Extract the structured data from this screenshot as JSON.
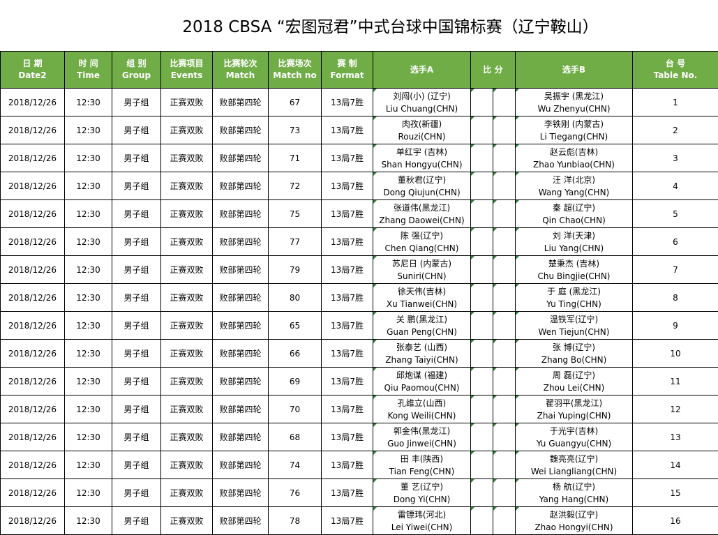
{
  "title": "2018 CBSA “宏图冠君”中式台球中国锦标赛（辽宁鞍山）",
  "colors": {
    "header_bg": "#70ad47",
    "header_text": "#ffffff"
  },
  "headers": {
    "date": {
      "cn": "日  期",
      "en": "Date2"
    },
    "time": {
      "cn": "时  间",
      "en": "Time"
    },
    "group": {
      "cn": "组  别",
      "en": "Group"
    },
    "event": {
      "cn": "比赛项目",
      "en": "Events"
    },
    "match": {
      "cn": "比赛轮次",
      "en": "Match"
    },
    "matchno": {
      "cn": "比赛场次",
      "en": "Match no"
    },
    "format": {
      "cn": "赛  制",
      "en": "Format"
    },
    "playerA": "选手A",
    "score": "比 分",
    "playerB": "选手B",
    "table": {
      "cn": "台  号",
      "en": "Table No."
    }
  },
  "rows": [
    {
      "date": "2018/12/26",
      "time": "12:30",
      "group": "男子组",
      "event": "正赛双败",
      "match": "败部第四轮",
      "matchno": "67",
      "format": "13局7胜",
      "a_cn": "刘闯(小) (辽宁)",
      "a_en": "Liu Chuang(CHN)",
      "b_cn": "吴振宇 (黑龙江)",
      "b_en": "Wu Zhenyu(CHN)",
      "table": "1"
    },
    {
      "date": "2018/12/26",
      "time": "12:30",
      "group": "男子组",
      "event": "正赛双败",
      "match": "败部第四轮",
      "matchno": "73",
      "format": "13局7胜",
      "a_cn": "肉孜(新疆)",
      "a_en": "Rouzi(CHN)",
      "b_cn": "李铁刚 (内蒙古)",
      "b_en": "Li Tiegang(CHN)",
      "table": "2"
    },
    {
      "date": "2018/12/26",
      "time": "12:30",
      "group": "男子组",
      "event": "正赛双败",
      "match": "败部第四轮",
      "matchno": "71",
      "format": "13局7胜",
      "a_cn": "单红宇 (吉林)",
      "a_en": "Shan Hongyu(CHN)",
      "b_cn": "赵云彪(吉林)",
      "b_en": "Zhao Yunbiao(CHN)",
      "table": "3"
    },
    {
      "date": "2018/12/26",
      "time": "12:30",
      "group": "男子组",
      "event": "正赛双败",
      "match": "败部第四轮",
      "matchno": "72",
      "format": "13局7胜",
      "a_cn": "董秋君(辽宁)",
      "a_en": "Dong Qiujun(CHN)",
      "b_cn": "汪    洋(北京)",
      "b_en": "Wang Yang(CHN)",
      "table": "4"
    },
    {
      "date": "2018/12/26",
      "time": "12:30",
      "group": "男子组",
      "event": "正赛双败",
      "match": "败部第四轮",
      "matchno": "75",
      "format": "13局7胜",
      "a_cn": "张道伟(黑龙江)",
      "a_en": "Zhang Daowei(CHN)",
      "b_cn": "秦    超(辽宁)",
      "b_en": "Qin Chao(CHN)",
      "table": "5"
    },
    {
      "date": "2018/12/26",
      "time": "12:30",
      "group": "男子组",
      "event": "正赛双败",
      "match": "败部第四轮",
      "matchno": "77",
      "format": "13局7胜",
      "a_cn": "陈    强(辽宁)",
      "a_en": "Chen Qiang(CHN)",
      "b_cn": "刘    洋(天津)",
      "b_en": "Liu Yang(CHN)",
      "table": "6"
    },
    {
      "date": "2018/12/26",
      "time": "12:30",
      "group": "男子组",
      "event": "正赛双败",
      "match": "败部第四轮",
      "matchno": "79",
      "format": "13局7胜",
      "a_cn": "苏尼日 (内蒙古)",
      "a_en": "Suniri(CHN)",
      "b_cn": "楚秉杰 (吉林)",
      "b_en": "Chu Bingjie(CHN)",
      "table": "7"
    },
    {
      "date": "2018/12/26",
      "time": "12:30",
      "group": "男子组",
      "event": "正赛双败",
      "match": "败部第四轮",
      "matchno": "80",
      "format": "13局7胜",
      "a_cn": "徐天伟(吉林)",
      "a_en": "Xu Tianwei(CHN)",
      "b_cn": "于    庭 (黑龙江)",
      "b_en": "Yu Ting(CHN)",
      "table": "8"
    },
    {
      "date": "2018/12/26",
      "time": "12:30",
      "group": "男子组",
      "event": "正赛双败",
      "match": "败部第四轮",
      "matchno": "65",
      "format": "13局7胜",
      "a_cn": "关    鹏(黑龙江)",
      "a_en": "Guan Peng(CHN)",
      "b_cn": "温铁军(辽宁)",
      "b_en": "Wen Tiejun(CHN)",
      "table": "9"
    },
    {
      "date": "2018/12/26",
      "time": "12:30",
      "group": "男子组",
      "event": "正赛双败",
      "match": "败部第四轮",
      "matchno": "66",
      "format": "13局7胜",
      "a_cn": "张泰艺 (山西)",
      "a_en": "Zhang Taiyi(CHN)",
      "b_cn": "张    博(辽宁)",
      "b_en": "Zhang Bo(CHN)",
      "table": "10"
    },
    {
      "date": "2018/12/26",
      "time": "12:30",
      "group": "男子组",
      "event": "正赛双败",
      "match": "败部第四轮",
      "matchno": "69",
      "format": "13局7胜",
      "a_cn": "邱炮谋 (福建)",
      "a_en": "Qiu Paomou(CHN)",
      "b_cn": "周    磊(辽宁)",
      "b_en": "Zhou Lei(CHN)",
      "table": "11"
    },
    {
      "date": "2018/12/26",
      "time": "12:30",
      "group": "男子组",
      "event": "正赛双败",
      "match": "败部第四轮",
      "matchno": "70",
      "format": "13局7胜",
      "a_cn": "孔维立(山西)",
      "a_en": "Kong Weili(CHN)",
      "b_cn": "翟羽平(黑龙江)",
      "b_en": "Zhai Yuping(CHN)",
      "table": "12"
    },
    {
      "date": "2018/12/26",
      "time": "12:30",
      "group": "男子组",
      "event": "正赛双败",
      "match": "败部第四轮",
      "matchno": "68",
      "format": "13局7胜",
      "a_cn": "郭金伟(黑龙江)",
      "a_en": "Guo Jinwei(CHN)",
      "b_cn": "于光宇(吉林)",
      "b_en": "Yu Guangyu(CHN)",
      "table": "13"
    },
    {
      "date": "2018/12/26",
      "time": "12:30",
      "group": "男子组",
      "event": "正赛双败",
      "match": "败部第四轮",
      "matchno": "74",
      "format": "13局7胜",
      "a_cn": "田    丰(陕西)",
      "a_en": "Tian Feng(CHN)",
      "b_cn": "魏亮亮(辽宁)",
      "b_en": "Wei Liangliang(CHN)",
      "table": "14"
    },
    {
      "date": "2018/12/26",
      "time": "12:30",
      "group": "男子组",
      "event": "正赛双败",
      "match": "败部第四轮",
      "matchno": "76",
      "format": "13局7胜",
      "a_cn": "董    艺(辽宁)",
      "a_en": "Dong Yi(CHN)",
      "b_cn": "杨    航(辽宁)",
      "b_en": "Yang Hang(CHN)",
      "table": "15"
    },
    {
      "date": "2018/12/26",
      "time": "12:30",
      "group": "男子组",
      "event": "正赛双败",
      "match": "败部第四轮",
      "matchno": "78",
      "format": "13局7胜",
      "a_cn": "雷镖玮(河北)",
      "a_en": "Lei Yiwei(CHN)",
      "b_cn": "赵洪毅(辽宁)",
      "b_en": "Zhao Hongyi(CHN)",
      "table": "16"
    }
  ]
}
